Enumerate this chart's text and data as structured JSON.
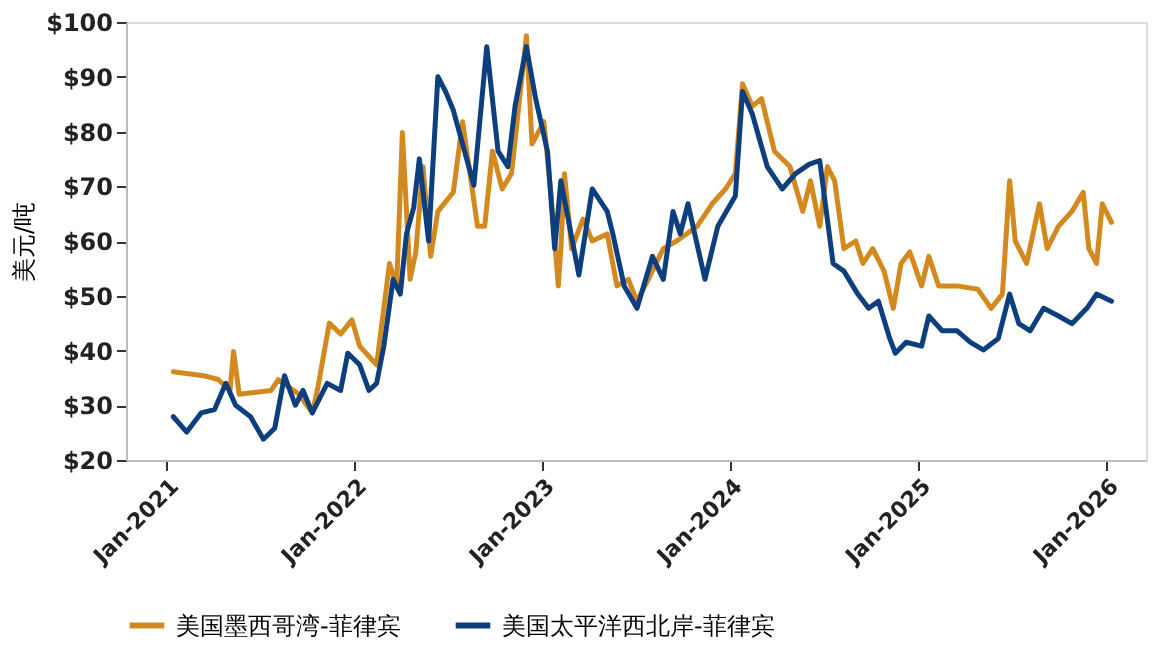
{
  "chart_data": {
    "type": "line",
    "ylabel": "美元/吨",
    "xlim": [
      "2020-10-15",
      "2026-03-20"
    ],
    "xticks": [
      {
        "value": "2021-01-01",
        "label": "Jan-2021"
      },
      {
        "value": "2022-01-01",
        "label": "Jan-2022"
      },
      {
        "value": "2023-01-01",
        "label": "Jan-2023"
      },
      {
        "value": "2024-01-01",
        "label": "Jan-2024"
      },
      {
        "value": "2025-01-01",
        "label": "Jan-2025"
      },
      {
        "value": "2026-01-01",
        "label": "Jan-2026"
      }
    ],
    "ylim": [
      20,
      100
    ],
    "yticks": [
      {
        "value": 20,
        "label": "$20"
      },
      {
        "value": 30,
        "label": "$30"
      },
      {
        "value": 40,
        "label": "$40"
      },
      {
        "value": 50,
        "label": "$50"
      },
      {
        "value": 60,
        "label": "$60"
      },
      {
        "value": 70,
        "label": "$70"
      },
      {
        "value": 80,
        "label": "$80"
      },
      {
        "value": 90,
        "label": "$90"
      },
      {
        "value": 100,
        "label": "$100"
      }
    ],
    "grid": false,
    "legend": "bottom",
    "marker": "none",
    "line_style": "solid",
    "series": [
      {
        "name": "美国墨西哥湾-菲律宾",
        "color": "#d4891e",
        "x": [
          "2021-01-15",
          "2021-03-15",
          "2021-04-12",
          "2021-05-05",
          "2021-05-12",
          "2021-05-23",
          "2021-07-24",
          "2021-08-07",
          "2021-09-16",
          "2021-10-12",
          "2021-10-23",
          "2021-11-14",
          "2021-12-06",
          "2021-12-28",
          "2022-01-12",
          "2022-02-14",
          "2022-03-11",
          "2022-03-25",
          "2022-04-05",
          "2022-04-20",
          "2022-05-01",
          "2022-05-15",
          "2022-05-30",
          "2022-06-13",
          "2022-07-13",
          "2022-07-31",
          "2022-08-29",
          "2022-09-12",
          "2022-09-27",
          "2022-10-16",
          "2022-11-03",
          "2022-12-02",
          "2022-12-13",
          "2023-01-05",
          "2023-01-19",
          "2023-02-02",
          "2023-02-07",
          "2023-02-14",
          "2023-02-28",
          "2023-03-22",
          "2023-04-09",
          "2023-05-08",
          "2023-05-27",
          "2023-06-18",
          "2023-07-05",
          "2023-07-27",
          "2023-08-25",
          "2023-09-20",
          "2023-10-30",
          "2023-11-28",
          "2023-12-24",
          "2024-01-12",
          "2024-01-26",
          "2024-02-14",
          "2024-03-03",
          "2024-03-28",
          "2024-04-27",
          "2024-05-22",
          "2024-06-06",
          "2024-06-24",
          "2024-07-09",
          "2024-07-23",
          "2024-08-10",
          "2024-09-02",
          "2024-09-16",
          "2024-10-05",
          "2024-10-27",
          "2024-11-14",
          "2024-11-29",
          "2024-12-16",
          "2025-01-08",
          "2025-01-22",
          "2025-02-10",
          "2025-03-18",
          "2025-04-27",
          "2025-05-23",
          "2025-06-14",
          "2025-06-28",
          "2025-07-09",
          "2025-07-31",
          "2025-08-25",
          "2025-09-09",
          "2025-10-01",
          "2025-10-27",
          "2025-11-18",
          "2025-11-29",
          "2025-12-14",
          "2025-12-25",
          "2026-01-12"
        ],
        "values": [
          36.1,
          35.4,
          34.7,
          32.7,
          39.8,
          32,
          32.7,
          34.7,
          32,
          28.6,
          33.3,
          45,
          43,
          45.6,
          40.8,
          37.4,
          55.9,
          51.8,
          79.8,
          53,
          57.9,
          73.6,
          57.2,
          65.4,
          68.9,
          81.8,
          62.7,
          62.7,
          76.4,
          69.5,
          72.3,
          97.5,
          77.7,
          81.8,
          68.2,
          51.8,
          58.6,
          72.3,
          58.6,
          64,
          60,
          61.3,
          51.8,
          53,
          49,
          53,
          58.6,
          60,
          62.7,
          66.8,
          69.5,
          72.3,
          88.7,
          84.6,
          86,
          76.4,
          73.6,
          65.4,
          71,
          62.7,
          73.6,
          71,
          58.6,
          60,
          55.9,
          58.6,
          54.5,
          47.7,
          55.9,
          58,
          51.8,
          57.2,
          51.8,
          51.8,
          51.2,
          47.7,
          50.3,
          71,
          60,
          55.9,
          66.8,
          58.6,
          62.7,
          65.4,
          68.9,
          58.6,
          55.9,
          66.8,
          63.4
        ]
      },
      {
        "name": "美国太平洋西北岸-菲律宾",
        "color": "#0d3f7f",
        "x": [
          "2021-01-15",
          "2021-02-10",
          "2021-03-10",
          "2021-04-05",
          "2021-04-27",
          "2021-05-16",
          "2021-06-14",
          "2021-07-09",
          "2021-07-31",
          "2021-08-19",
          "2021-09-09",
          "2021-09-24",
          "2021-10-12",
          "2021-11-10",
          "2021-12-06",
          "2021-12-20",
          "2022-01-12",
          "2022-01-30",
          "2022-02-14",
          "2022-02-28",
          "2022-03-18",
          "2022-04-01",
          "2022-04-13",
          "2022-04-27",
          "2022-05-08",
          "2022-05-26",
          "2022-06-13",
          "2022-06-28",
          "2022-07-13",
          "2022-07-31",
          "2022-08-22",
          "2022-09-16",
          "2022-10-08",
          "2022-10-27",
          "2022-11-10",
          "2022-12-02",
          "2022-12-20",
          "2023-01-12",
          "2023-01-26",
          "2023-02-07",
          "2023-03-14",
          "2023-04-09",
          "2023-05-08",
          "2023-05-19",
          "2023-06-10",
          "2023-07-05",
          "2023-08-04",
          "2023-08-25",
          "2023-09-13",
          "2023-09-27",
          "2023-10-12",
          "2023-11-14",
          "2023-12-09",
          "2024-01-12",
          "2024-01-26",
          "2024-02-14",
          "2024-03-14",
          "2024-04-12",
          "2024-05-08",
          "2024-06-03",
          "2024-06-24",
          "2024-07-20",
          "2024-08-10",
          "2024-09-06",
          "2024-09-27",
          "2024-10-16",
          "2024-11-07",
          "2024-11-18",
          "2024-12-09",
          "2025-01-08",
          "2025-01-22",
          "2025-02-17",
          "2025-03-18",
          "2025-04-13",
          "2025-05-08",
          "2025-06-06",
          "2025-06-28",
          "2025-07-16",
          "2025-08-07",
          "2025-09-02",
          "2025-10-01",
          "2025-10-27",
          "2025-11-25",
          "2025-12-14",
          "2026-01-12"
        ],
        "values": [
          27.9,
          25.1,
          28.6,
          29.2,
          34,
          30,
          27.9,
          23.8,
          25.8,
          35.4,
          30,
          32.7,
          28.6,
          34,
          32.7,
          39.5,
          37.4,
          32.7,
          34,
          40.8,
          53,
          50.3,
          61.3,
          66.1,
          75,
          60,
          90,
          87.3,
          83.9,
          77.7,
          70.2,
          95.5,
          76.4,
          73.6,
          84.6,
          95.5,
          86,
          76.4,
          58.6,
          71,
          53.8,
          69.5,
          65.4,
          61.3,
          51.8,
          47.7,
          57.2,
          53,
          65.4,
          61.3,
          66.8,
          53,
          62.7,
          68.2,
          87.3,
          83.2,
          73.6,
          69.5,
          72.3,
          74,
          74.7,
          55.9,
          54.5,
          50.3,
          47.7,
          49,
          42.2,
          39.5,
          41.5,
          40.8,
          46.3,
          43.6,
          43.6,
          41.5,
          40.1,
          42.2,
          50.3,
          44.9,
          43.6,
          47.7,
          46.3,
          44.9,
          47.7,
          50.3,
          49
        ]
      }
    ]
  }
}
